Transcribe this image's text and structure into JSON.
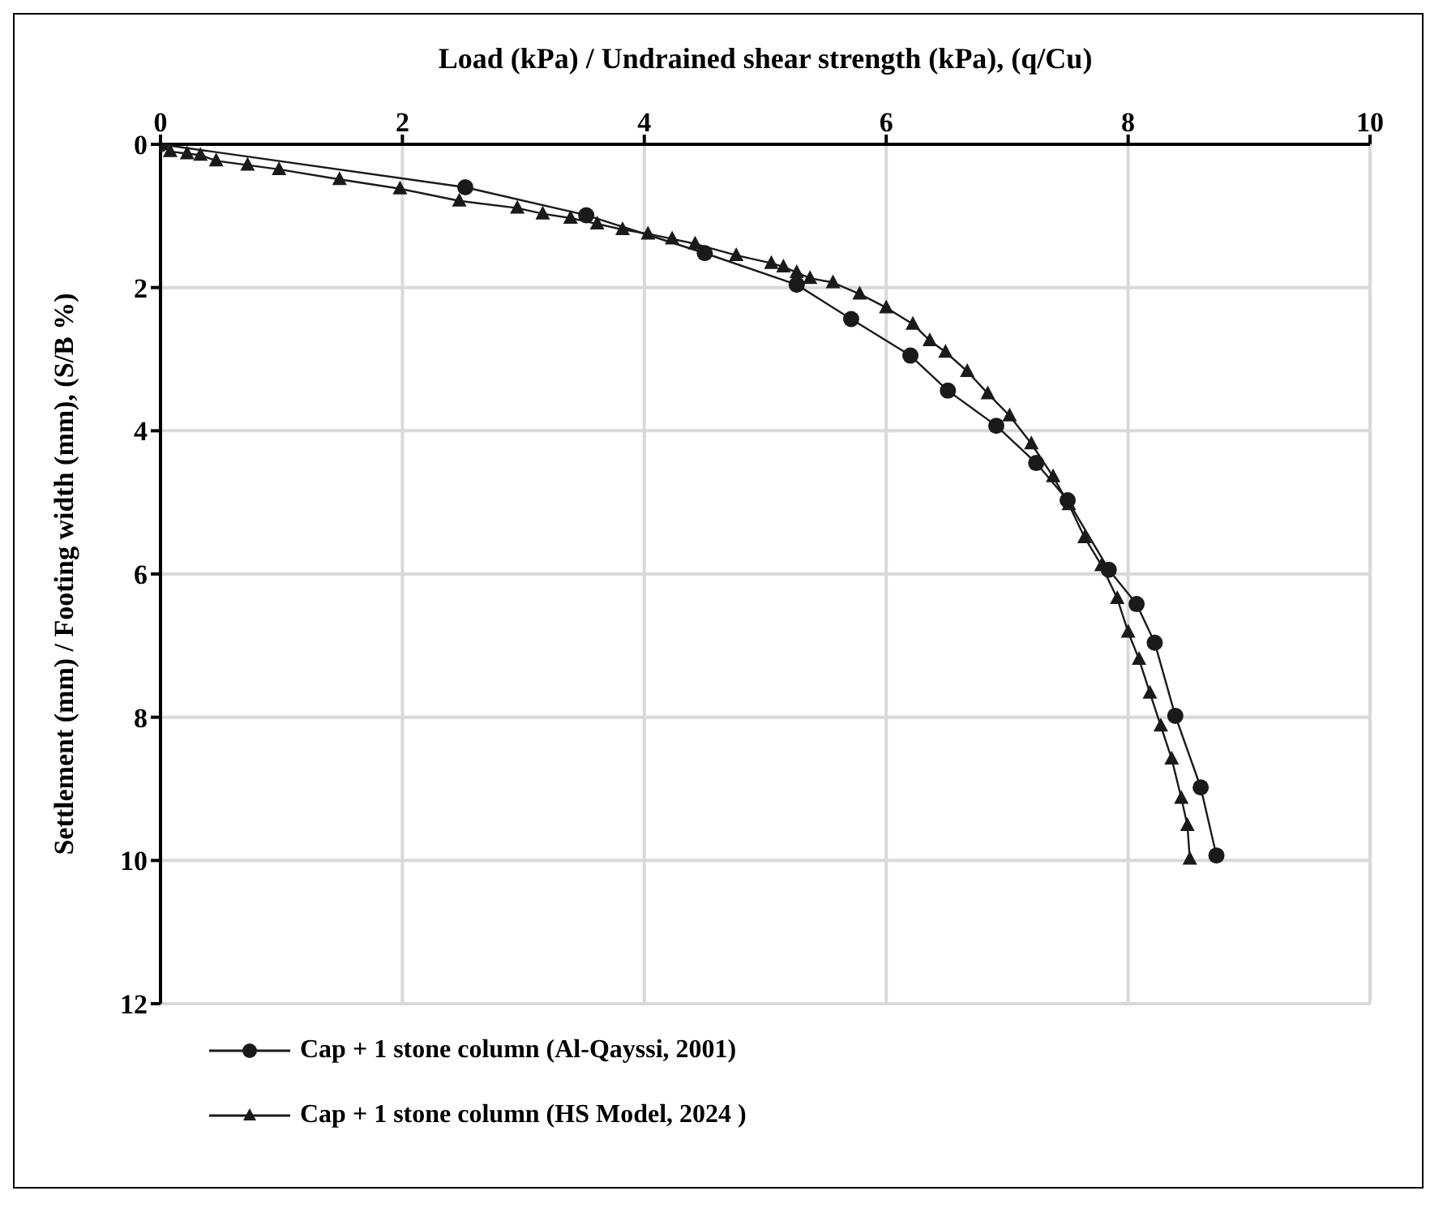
{
  "chart_data": {
    "type": "line",
    "xlabel": "Load (kPa) / Undrained  shear strength (kPa), (q/Cu)",
    "ylabel": "Settlement (mm) / Footing width  (mm), (S/B %)",
    "xlim": [
      0,
      10
    ],
    "xticks": [
      0,
      2,
      4,
      6,
      8,
      10
    ],
    "ylim": [
      12,
      0
    ],
    "yticks": [
      0,
      2,
      4,
      6,
      8,
      10,
      12
    ],
    "grid": true,
    "legend": "bottom",
    "line_style": "solid",
    "series": [
      {
        "name": "Cap + 1 stone column (Al-Qayssi, 2001)",
        "color": "#1a1a1a",
        "marker": "circle",
        "x": [
          0,
          2.52,
          3.52,
          4.5,
          5.26,
          5.71,
          6.2,
          6.51,
          6.91,
          7.24,
          7.5,
          7.84,
          8.07,
          8.22,
          8.39,
          8.6,
          8.73
        ],
        "values": [
          0,
          0.6,
          0.99,
          1.52,
          1.96,
          2.44,
          2.95,
          3.44,
          3.93,
          4.45,
          4.97,
          5.94,
          6.42,
          6.96,
          7.98,
          8.98,
          9.93
        ]
      },
      {
        "name": "Cap + 1 stone column (HS Model, 2024 )",
        "color": "#1a1a1a",
        "marker": "triangle",
        "x": [
          0,
          0.08,
          0.22,
          0.33,
          0.46,
          0.72,
          0.98,
          1.48,
          1.98,
          2.47,
          2.95,
          3.16,
          3.39,
          3.61,
          3.82,
          4.03,
          4.23,
          4.42,
          4.76,
          5.05,
          5.15,
          5.26,
          5.37,
          5.56,
          5.78,
          6.0,
          6.22,
          6.36,
          6.49,
          6.67,
          6.84,
          7.02,
          7.2,
          7.38,
          7.51,
          7.64,
          7.78,
          7.91,
          8.0,
          8.09,
          8.18,
          8.27,
          8.36,
          8.44,
          8.49,
          8.51
        ],
        "values": [
          0,
          0.1,
          0.13,
          0.15,
          0.23,
          0.29,
          0.35,
          0.49,
          0.62,
          0.79,
          0.89,
          0.97,
          1.03,
          1.11,
          1.19,
          1.25,
          1.32,
          1.39,
          1.55,
          1.66,
          1.71,
          1.79,
          1.87,
          1.93,
          2.09,
          2.28,
          2.51,
          2.74,
          2.9,
          3.17,
          3.48,
          3.79,
          4.18,
          4.64,
          5.03,
          5.49,
          5.88,
          6.34,
          6.81,
          7.19,
          7.66,
          8.12,
          8.58,
          9.13,
          9.51,
          9.98
        ]
      }
    ]
  }
}
